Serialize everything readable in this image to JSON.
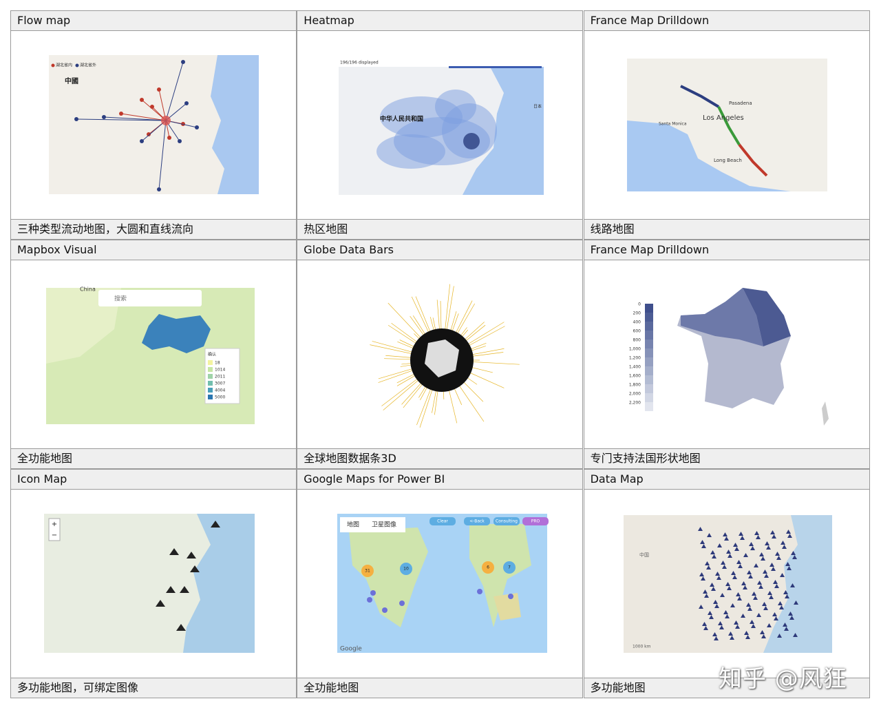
{
  "cells": [
    {
      "title": "Flow map",
      "caption": "三种类型流动地图，大圆和直线流向",
      "labels": [
        "湖北省内",
        "湖北省外",
        "中國"
      ]
    },
    {
      "title": "Heatmap",
      "caption": "热区地图",
      "labels": [
        "196/196 displayed",
        "中华人民共和国",
        "日本"
      ]
    },
    {
      "title": "France Map Drilldown",
      "caption": "线路地图",
      "labels": [
        "Los Angeles",
        "Santa Monica",
        "Long Beach",
        "Pasadena"
      ]
    },
    {
      "title": "Mapbox Visual",
      "caption": "全功能地图",
      "labels": [
        "China",
        "搜索",
        "确认",
        "18",
        "1014",
        "2011",
        "3007",
        "4004",
        "5000"
      ]
    },
    {
      "title": "Globe Data Bars",
      "caption": "全球地图数据条3D",
      "labels": []
    },
    {
      "title": "France Map Drilldown",
      "caption": "专门支持法国形状地图",
      "labels": [
        "0",
        "200",
        "400",
        "600",
        "800",
        "1,000",
        "1,200",
        "1,400",
        "1,600",
        "1,800",
        "2,000",
        "2,200"
      ]
    },
    {
      "title": "Icon Map",
      "caption": "多功能地图，可绑定图像",
      "labels": [
        "+",
        "−"
      ]
    },
    {
      "title": "Google Maps for Power BI",
      "caption": "全功能地图",
      "labels": [
        "地图",
        "卫星图像",
        "Clear",
        "<-Back",
        "Consulting",
        "PRO",
        "31",
        "10",
        "6",
        "7",
        "Google"
      ]
    },
    {
      "title": "Data Map",
      "caption": "多功能地图",
      "labels": [
        "中国",
        "1000 km"
      ]
    }
  ],
  "watermark": "知乎 @风狂"
}
